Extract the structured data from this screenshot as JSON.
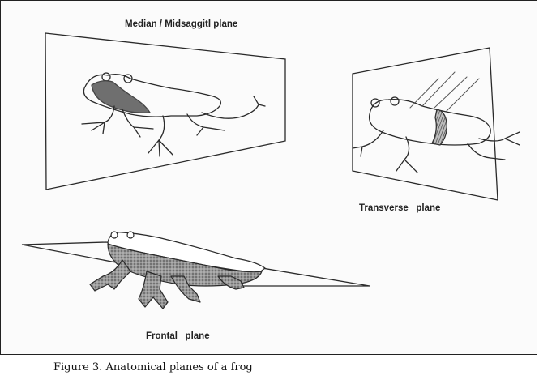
{
  "figure": {
    "labels": {
      "median": "Median / Midsaggitl plane",
      "transverse": "Transverse   plane",
      "frontal": "Frontal   plane"
    },
    "caption": "Figure 3. Anatomical planes of a frog"
  },
  "colors": {
    "ink": "#2a2a2a",
    "shade": "#6f6f6f",
    "frame": "#222222"
  }
}
